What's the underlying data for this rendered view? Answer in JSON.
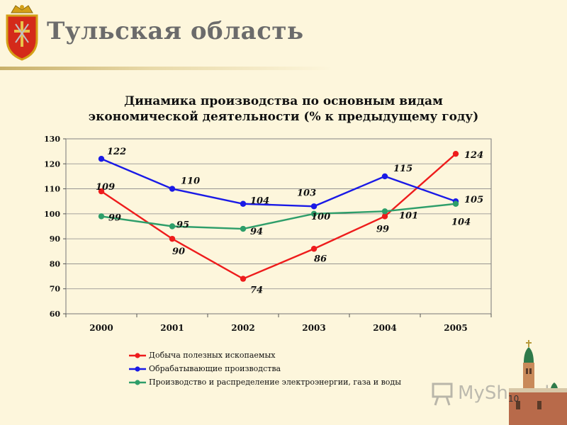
{
  "header": {
    "title": "Тульская  область"
  },
  "colors": {
    "background": "#fdf6dc",
    "title_gray": "#6b6b6b",
    "series_red": "#ee1c1c",
    "series_blue": "#1a1ae6",
    "series_green": "#2e9e6a"
  },
  "chart_data": {
    "type": "line",
    "title_lines": [
      "Динамика производства по основным видам",
      "экономической деятельности (% к предыдущему году)"
    ],
    "xlabel": "",
    "ylabel": "",
    "categories": [
      "2000",
      "2001",
      "2002",
      "2003",
      "2004",
      "2005"
    ],
    "ylim": [
      60,
      130
    ],
    "yticks": [
      "60",
      "70",
      "80",
      "90",
      "100",
      "110",
      "120",
      "130"
    ],
    "grid": true,
    "legend_position": "bottom",
    "series": [
      {
        "name": "Добыча полезных ископаемых",
        "color": "#ee1c1c",
        "values": [
          109,
          90,
          74,
          86,
          99,
          124
        ],
        "labels": [
          "109",
          "90",
          "74",
          "86",
          "99",
          "124"
        ]
      },
      {
        "name": "Обрабатывающие производства",
        "color": "#1a1ae6",
        "values": [
          122,
          110,
          104,
          103,
          115,
          105
        ],
        "labels": [
          "122",
          "110",
          "104",
          "103",
          "115",
          "105"
        ]
      },
      {
        "name": "Производство и распределение электроэнергии, газа и воды",
        "color": "#2e9e6a",
        "values": [
          99,
          95,
          94,
          100,
          101,
          104
        ],
        "labels": [
          "99",
          "95",
          "94",
          "100",
          "101",
          "104"
        ]
      }
    ]
  },
  "watermark": {
    "text": "MyShared"
  },
  "page_number": "10"
}
